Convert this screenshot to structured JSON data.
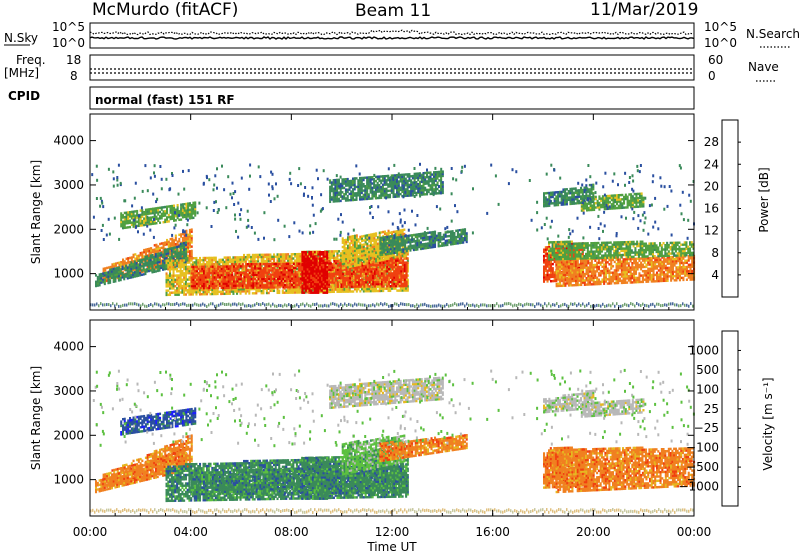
{
  "header": {
    "station": "McMurdo (fitACF)",
    "beam": "Beam 11",
    "date": "11/Mar/2019"
  },
  "noise_panel": {
    "left_label": "N.Sky",
    "right_label": "N.Search",
    "ticks_top": "10^5",
    "ticks_bottom": "10^0"
  },
  "freq_panel": {
    "left_label_1": "Freq.",
    "left_label_2": "[MHz]",
    "left_ticks": [
      "18",
      "8"
    ],
    "right_label": "Nave",
    "right_ticks": [
      "60",
      "0"
    ]
  },
  "cpid": {
    "label": "CPID",
    "value": "normal (fast) 151 RF"
  },
  "colors": {
    "power_scale": [
      "#1a1aff",
      "#2a4fa0",
      "#3a8a5a",
      "#50a040",
      "#e6c020",
      "#f08020",
      "#f04010",
      "#e00000"
    ],
    "velocity_scale": [
      "#e00000",
      "#f04010",
      "#f08020",
      "#e6b820",
      "#b8b8b8",
      "#5cc040",
      "#3a8a5a",
      "#2a4fa0",
      "#1a1aff"
    ]
  },
  "chart_data": [
    {
      "type": "heatmap",
      "title": "",
      "xlabel": "",
      "ylabel": "Slant Range [km]",
      "x_ticks": [
        "00:00",
        "04:00",
        "08:00",
        "12:00",
        "16:00",
        "20:00",
        "00:00"
      ],
      "y_ticks": [
        "1000",
        "2000",
        "3000",
        "4000"
      ],
      "ylim": [
        180,
        4600
      ],
      "colorbar": {
        "label": "Power [dB]",
        "ticks": [
          "4",
          "8",
          "12",
          "16",
          "20",
          "24",
          "28"
        ],
        "range": [
          0,
          32
        ]
      }
    },
    {
      "type": "heatmap",
      "title": "",
      "xlabel": "Time UT",
      "ylabel": "Slant Range [km]",
      "x_ticks": [
        "00:00",
        "04:00",
        "08:00",
        "12:00",
        "16:00",
        "20:00",
        "00:00"
      ],
      "y_ticks": [
        "1000",
        "2000",
        "3000",
        "4000"
      ],
      "ylim": [
        180,
        4600
      ],
      "colorbar": {
        "label": "Velocity [m s⁻¹]",
        "ticks": [
          "1000",
          "500",
          "100",
          "25",
          "−25",
          "−100",
          "−500",
          "−1000"
        ],
        "range": [
          -1200,
          1200
        ]
      }
    }
  ]
}
